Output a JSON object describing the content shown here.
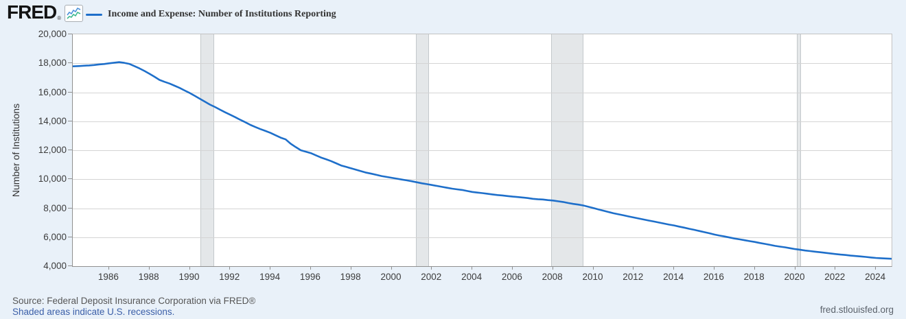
{
  "header": {
    "logo_text": "FRED",
    "registered_mark": "®",
    "legend_label": "Income and Expense: Number of Institutions Reporting"
  },
  "footer": {
    "source_text": "Source: Federal Deposit Insurance Corporation via FRED®",
    "recession_note": "Shaded areas indicate U.S. recessions.",
    "site_url": "fred.stlouisfed.org"
  },
  "colors": {
    "background": "#e9f1f9",
    "plot_background": "#ffffff",
    "line": "#1e6fca",
    "gridline": "#d4d4d4",
    "recession_fill": "#e4e7e9",
    "recession_edge": "#c3c8cb",
    "axis_text": "#3c3c3c",
    "link_text": "#3b5fa8",
    "muted_text": "#565656",
    "sparkline_blue": "#4a90d9",
    "sparkline_green": "#3cb88f"
  },
  "chart_data": {
    "type": "line",
    "title": "Income and Expense: Number of Institutions Reporting",
    "xlabel": "",
    "ylabel": "Number of Institutions",
    "x_range": [
      1984.2,
      2024.78
    ],
    "y_range": [
      4000,
      20000
    ],
    "x_ticks": [
      1986,
      1988,
      1990,
      1992,
      1994,
      1996,
      1998,
      2000,
      2002,
      2004,
      2006,
      2008,
      2010,
      2012,
      2014,
      2016,
      2018,
      2020,
      2022,
      2024
    ],
    "y_ticks": [
      4000,
      6000,
      8000,
      10000,
      12000,
      14000,
      16000,
      18000,
      20000
    ],
    "grid": "horizontal",
    "legend_position": "top",
    "recessions": [
      [
        1990.54,
        1991.21
      ],
      [
        2001.21,
        2001.87
      ],
      [
        2007.92,
        2009.5
      ],
      [
        2020.08,
        2020.29
      ]
    ],
    "series": [
      {
        "name": "Income and Expense: Number of Institutions Reporting",
        "color": "#1e6fca",
        "points": [
          [
            1984.2,
            17790
          ],
          [
            1984.5,
            17810
          ],
          [
            1984.75,
            17830
          ],
          [
            1985.0,
            17850
          ],
          [
            1985.25,
            17880
          ],
          [
            1985.5,
            17920
          ],
          [
            1985.75,
            17950
          ],
          [
            1986.0,
            18000
          ],
          [
            1986.25,
            18040
          ],
          [
            1986.5,
            18080
          ],
          [
            1986.75,
            18030
          ],
          [
            1987.0,
            17960
          ],
          [
            1987.25,
            17810
          ],
          [
            1987.5,
            17650
          ],
          [
            1987.75,
            17470
          ],
          [
            1988.0,
            17280
          ],
          [
            1988.25,
            17070
          ],
          [
            1988.5,
            16850
          ],
          [
            1988.75,
            16720
          ],
          [
            1989.0,
            16600
          ],
          [
            1989.25,
            16450
          ],
          [
            1989.5,
            16300
          ],
          [
            1989.75,
            16120
          ],
          [
            1990.0,
            15950
          ],
          [
            1990.25,
            15750
          ],
          [
            1990.5,
            15550
          ],
          [
            1990.75,
            15350
          ],
          [
            1991.0,
            15150
          ],
          [
            1991.25,
            14980
          ],
          [
            1991.5,
            14800
          ],
          [
            1991.75,
            14620
          ],
          [
            1992.0,
            14450
          ],
          [
            1992.25,
            14280
          ],
          [
            1992.5,
            14100
          ],
          [
            1992.75,
            13930
          ],
          [
            1993.0,
            13750
          ],
          [
            1993.25,
            13600
          ],
          [
            1993.5,
            13460
          ],
          [
            1993.75,
            13330
          ],
          [
            1994.0,
            13200
          ],
          [
            1994.25,
            13030
          ],
          [
            1994.5,
            12870
          ],
          [
            1994.75,
            12750
          ],
          [
            1995.0,
            12450
          ],
          [
            1995.25,
            12220
          ],
          [
            1995.5,
            12000
          ],
          [
            1995.75,
            11900
          ],
          [
            1996.0,
            11800
          ],
          [
            1996.25,
            11650
          ],
          [
            1996.5,
            11500
          ],
          [
            1996.75,
            11380
          ],
          [
            1997.0,
            11250
          ],
          [
            1997.25,
            11100
          ],
          [
            1997.5,
            10950
          ],
          [
            1997.75,
            10850
          ],
          [
            1998.0,
            10750
          ],
          [
            1998.25,
            10650
          ],
          [
            1998.5,
            10550
          ],
          [
            1998.75,
            10450
          ],
          [
            1999.0,
            10380
          ],
          [
            1999.25,
            10300
          ],
          [
            1999.5,
            10220
          ],
          [
            1999.75,
            10160
          ],
          [
            2000.0,
            10100
          ],
          [
            2000.25,
            10040
          ],
          [
            2000.5,
            9980
          ],
          [
            2000.75,
            9920
          ],
          [
            2001.0,
            9860
          ],
          [
            2001.25,
            9790
          ],
          [
            2001.5,
            9720
          ],
          [
            2001.75,
            9660
          ],
          [
            2002.0,
            9600
          ],
          [
            2002.25,
            9540
          ],
          [
            2002.5,
            9470
          ],
          [
            2002.75,
            9410
          ],
          [
            2003.0,
            9350
          ],
          [
            2003.25,
            9300
          ],
          [
            2003.5,
            9260
          ],
          [
            2003.75,
            9190
          ],
          [
            2004.0,
            9120
          ],
          [
            2004.25,
            9080
          ],
          [
            2004.5,
            9040
          ],
          [
            2004.75,
            9000
          ],
          [
            2005.0,
            8950
          ],
          [
            2005.25,
            8910
          ],
          [
            2005.5,
            8880
          ],
          [
            2005.75,
            8840
          ],
          [
            2006.0,
            8800
          ],
          [
            2006.25,
            8770
          ],
          [
            2006.5,
            8740
          ],
          [
            2006.75,
            8700
          ],
          [
            2007.0,
            8650
          ],
          [
            2007.25,
            8620
          ],
          [
            2007.5,
            8600
          ],
          [
            2007.75,
            8560
          ],
          [
            2008.0,
            8530
          ],
          [
            2008.25,
            8480
          ],
          [
            2008.5,
            8430
          ],
          [
            2008.75,
            8360
          ],
          [
            2009.0,
            8300
          ],
          [
            2009.25,
            8250
          ],
          [
            2009.5,
            8190
          ],
          [
            2009.75,
            8100
          ],
          [
            2010.0,
            8010
          ],
          [
            2010.25,
            7920
          ],
          [
            2010.5,
            7830
          ],
          [
            2010.75,
            7740
          ],
          [
            2011.0,
            7650
          ],
          [
            2011.25,
            7580
          ],
          [
            2011.5,
            7510
          ],
          [
            2011.75,
            7430
          ],
          [
            2012.0,
            7360
          ],
          [
            2012.25,
            7290
          ],
          [
            2012.5,
            7220
          ],
          [
            2012.75,
            7150
          ],
          [
            2013.0,
            7080
          ],
          [
            2013.25,
            7010
          ],
          [
            2013.5,
            6940
          ],
          [
            2013.75,
            6870
          ],
          [
            2014.0,
            6810
          ],
          [
            2014.25,
            6730
          ],
          [
            2014.5,
            6660
          ],
          [
            2014.75,
            6580
          ],
          [
            2015.0,
            6510
          ],
          [
            2015.25,
            6430
          ],
          [
            2015.5,
            6350
          ],
          [
            2015.75,
            6270
          ],
          [
            2016.0,
            6180
          ],
          [
            2016.25,
            6110
          ],
          [
            2016.5,
            6050
          ],
          [
            2016.75,
            5980
          ],
          [
            2017.0,
            5910
          ],
          [
            2017.25,
            5850
          ],
          [
            2017.5,
            5790
          ],
          [
            2017.75,
            5730
          ],
          [
            2018.0,
            5670
          ],
          [
            2018.25,
            5600
          ],
          [
            2018.5,
            5540
          ],
          [
            2018.75,
            5470
          ],
          [
            2019.0,
            5400
          ],
          [
            2019.25,
            5350
          ],
          [
            2019.5,
            5300
          ],
          [
            2019.75,
            5240
          ],
          [
            2020.0,
            5180
          ],
          [
            2020.25,
            5130
          ],
          [
            2020.5,
            5080
          ],
          [
            2020.75,
            5040
          ],
          [
            2021.0,
            5000
          ],
          [
            2021.25,
            4960
          ],
          [
            2021.5,
            4920
          ],
          [
            2021.75,
            4880
          ],
          [
            2022.0,
            4840
          ],
          [
            2022.25,
            4800
          ],
          [
            2022.5,
            4770
          ],
          [
            2022.75,
            4730
          ],
          [
            2023.0,
            4700
          ],
          [
            2023.25,
            4670
          ],
          [
            2023.5,
            4640
          ],
          [
            2023.75,
            4600
          ],
          [
            2024.0,
            4570
          ],
          [
            2024.25,
            4550
          ],
          [
            2024.5,
            4530
          ],
          [
            2024.78,
            4510
          ]
        ]
      }
    ]
  }
}
